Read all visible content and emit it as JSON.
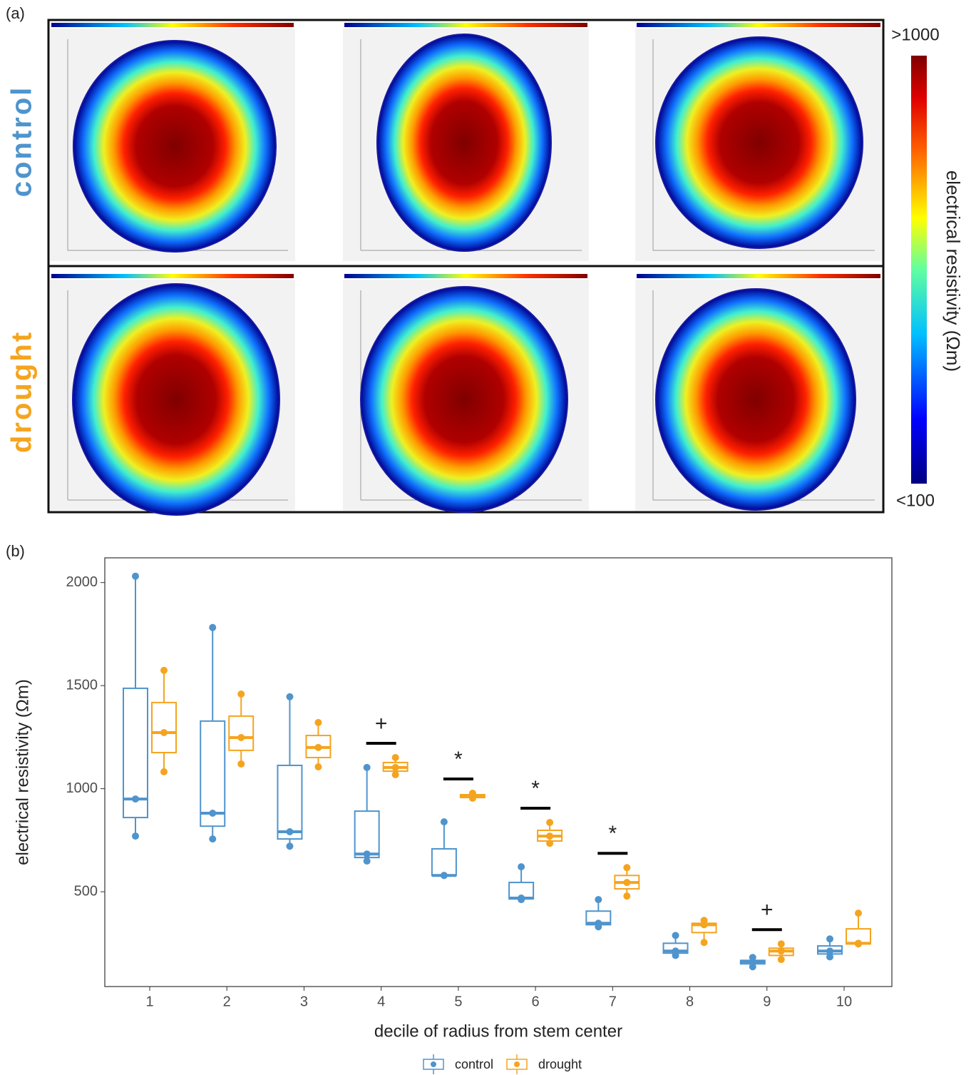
{
  "panel_a": {
    "label": "(a)",
    "row_labels": [
      "control",
      "drought"
    ],
    "colorbar": {
      "title": "electrical resistivity (Ωm)",
      "max_label": ">1000",
      "min_label": "<100"
    }
  },
  "chart_data": {
    "type": "box",
    "label": "(b)",
    "x_label": "decile of radius from stem center",
    "y_label": "electrical resistivity (Ωm)",
    "categories": [
      "1",
      "2",
      "3",
      "4",
      "5",
      "6",
      "7",
      "8",
      "9",
      "10"
    ],
    "series": [
      {
        "name": "control",
        "color": "#4f94cd",
        "min": [
          770,
          756,
          721,
          649,
          579,
          462,
          330,
          191,
          136,
          184
        ],
        "q1": [
          860,
          818,
          756,
          666,
          579,
          465,
          340,
          202,
          150,
          198
        ],
        "median": [
          950,
          881,
          791,
          683,
          579,
          469,
          347,
          212,
          160,
          212
        ],
        "q3": [
          1487,
          1328,
          1113,
          891,
          708,
          545,
          406,
          250,
          167,
          237
        ],
        "max": [
          2031,
          1782,
          1446,
          1103,
          839,
          621,
          462,
          288,
          181,
          271
        ]
      },
      {
        "name": "drought",
        "color": "#f5a41f",
        "min": [
          1082,
          1120,
          1106,
          1068,
          954,
          735,
          479,
          254,
          171,
          247
        ],
        "q1": [
          1175,
          1186,
          1151,
          1085,
          957,
          746,
          514,
          302,
          191,
          247
        ],
        "median": [
          1272,
          1248,
          1200,
          1103,
          964,
          770,
          545,
          340,
          212,
          250
        ],
        "q3": [
          1418,
          1352,
          1258,
          1127,
          971,
          798,
          579,
          347,
          226,
          320
        ],
        "max": [
          1574,
          1459,
          1321,
          1151,
          978,
          836,
          617,
          361,
          247,
          396
        ]
      }
    ],
    "ylim": [
      40,
      2120
    ],
    "yticks": [
      500,
      1000,
      1500,
      2000
    ],
    "annotations": [
      {
        "category": "4",
        "label": "+"
      },
      {
        "category": "5",
        "label": "*"
      },
      {
        "category": "6",
        "label": "*"
      },
      {
        "category": "7",
        "label": "*"
      },
      {
        "category": "9",
        "label": "+"
      }
    ],
    "legend": "bottom"
  }
}
